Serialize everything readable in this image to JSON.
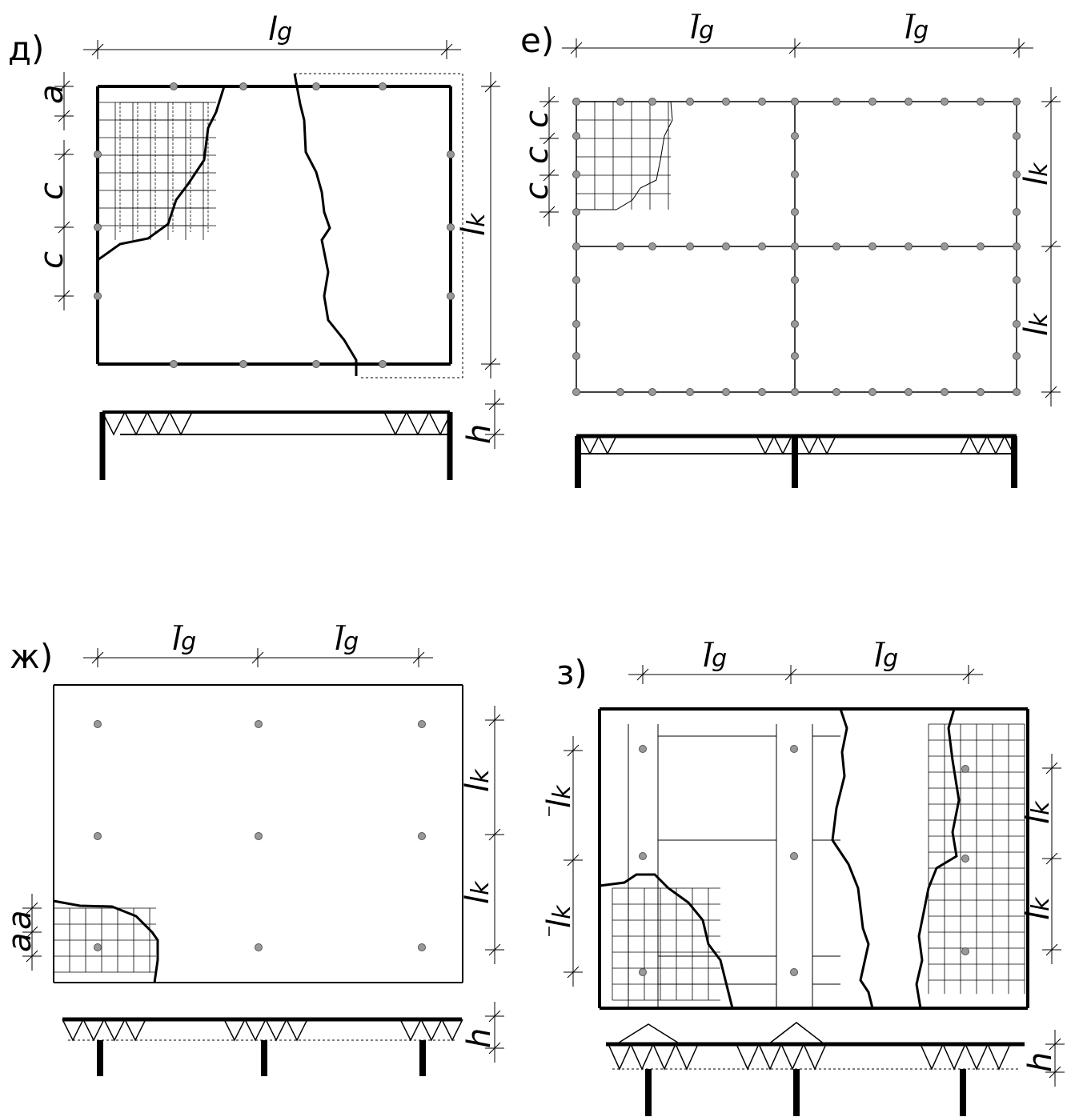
{
  "panels": [
    {
      "label": "д)",
      "span": {
        "symbol": "l",
        "index": "g"
      },
      "height": {
        "symbol": "l",
        "index": "k"
      },
      "edge": "a",
      "step": "c",
      "depth": "h"
    },
    {
      "label": "е)",
      "span": {
        "symbol": "l",
        "index": "g"
      },
      "height": {
        "symbol": "l",
        "index": "k"
      },
      "step": "c"
    },
    {
      "label": "ж)",
      "span": {
        "symbol": "l",
        "index": "g"
      },
      "height": {
        "symbol": "l",
        "index": "k"
      },
      "edge": "a",
      "depth": "h"
    },
    {
      "label": "з)",
      "span": {
        "symbol": "l",
        "index": "g"
      },
      "height": {
        "symbol": "l",
        "index": "k"
      },
      "depth": "h"
    }
  ]
}
